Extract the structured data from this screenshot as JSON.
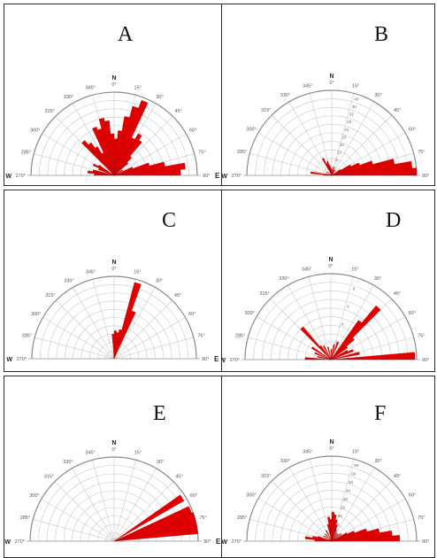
{
  "chart_data": [
    {
      "type": "rose",
      "panel": "A",
      "angle_range": [
        0,
        90,
        270,
        360
      ],
      "angle_ticks": [
        "0°",
        "15°",
        "30°",
        "45°",
        "60°",
        "75°",
        "90°",
        "285°",
        "300°",
        "315°",
        "330°",
        "345°",
        "270°"
      ],
      "cardinals": {
        "north": "N",
        "east": "E",
        "west": "W"
      },
      "rlim": [
        0,
        1
      ],
      "sectors": [
        {
          "angle": 315,
          "value": 0.55
        },
        {
          "angle": 320,
          "value": 0.48
        },
        {
          "angle": 325,
          "value": 0.4
        },
        {
          "angle": 330,
          "value": 0.3
        },
        {
          "angle": 335,
          "value": 0.62
        },
        {
          "angle": 340,
          "value": 0.58
        },
        {
          "angle": 345,
          "value": 0.7
        },
        {
          "angle": 350,
          "value": 0.66
        },
        {
          "angle": 355,
          "value": 0.5
        },
        {
          "angle": 0,
          "value": 0.44
        },
        {
          "angle": 5,
          "value": 0.54
        },
        {
          "angle": 10,
          "value": 0.72
        },
        {
          "angle": 15,
          "value": 0.86
        },
        {
          "angle": 20,
          "value": 0.96
        },
        {
          "angle": 25,
          "value": 0.5
        },
        {
          "angle": 30,
          "value": 0.58
        },
        {
          "angle": 35,
          "value": 0.52
        },
        {
          "angle": 40,
          "value": 0.3
        },
        {
          "angle": 45,
          "value": 0.22
        },
        {
          "angle": 55,
          "value": 0.12
        },
        {
          "angle": 65,
          "value": 0.24
        },
        {
          "angle": 70,
          "value": 0.44
        },
        {
          "angle": 75,
          "value": 0.62
        },
        {
          "angle": 80,
          "value": 0.86
        },
        {
          "angle": 85,
          "value": 0.8
        },
        {
          "angle": 290,
          "value": 0.2
        },
        {
          "angle": 295,
          "value": 0.28
        },
        {
          "angle": 300,
          "value": 0.22
        },
        {
          "angle": 280,
          "value": 0.26
        },
        {
          "angle": 275,
          "value": 0.32
        },
        {
          "angle": 270,
          "value": 0.24
        }
      ]
    },
    {
      "type": "rose",
      "panel": "B",
      "angle_range": [
        0,
        90,
        270,
        360
      ],
      "angle_ticks": [
        "0°",
        "15°",
        "30°",
        "45°",
        "60°",
        "75°",
        "90°",
        "285°",
        "300°",
        "315°",
        "330°",
        "345°",
        "270°"
      ],
      "cardinals": {
        "north": "N",
        "east": "E",
        "west": "W"
      },
      "rlim": [
        0,
        40
      ],
      "radial_ticks": [
        "4",
        "8",
        "12",
        "16",
        "20",
        "24",
        "28",
        "32",
        "36",
        "40"
      ],
      "sectors": [
        {
          "angle": 330,
          "value": 9
        },
        {
          "angle": 335,
          "value": 6
        },
        {
          "angle": 340,
          "value": 7
        },
        {
          "angle": 345,
          "value": 5
        },
        {
          "angle": 350,
          "value": 4
        },
        {
          "angle": 355,
          "value": 3
        },
        {
          "angle": 0,
          "value": 3
        },
        {
          "angle": 10,
          "value": 4
        },
        {
          "angle": 20,
          "value": 3
        },
        {
          "angle": 30,
          "value": 3
        },
        {
          "angle": 55,
          "value": 5
        },
        {
          "angle": 60,
          "value": 10
        },
        {
          "angle": 65,
          "value": 14
        },
        {
          "angle": 70,
          "value": 20
        },
        {
          "angle": 75,
          "value": 30
        },
        {
          "angle": 80,
          "value": 38
        },
        {
          "angle": 85,
          "value": 40
        },
        {
          "angle": 300,
          "value": 3
        },
        {
          "angle": 280,
          "value": 3
        },
        {
          "angle": 275,
          "value": 10
        },
        {
          "angle": 270,
          "value": 4
        }
      ]
    },
    {
      "type": "rose",
      "panel": "C",
      "angle_range": [
        0,
        90,
        270,
        360
      ],
      "angle_ticks": [
        "0°",
        "15°",
        "30°",
        "45°",
        "60°",
        "75°",
        "90°",
        "285°",
        "300°",
        "315°",
        "330°",
        "345°",
        "270°"
      ],
      "cardinals": {
        "north": "N",
        "east": "E",
        "west": "W"
      },
      "rlim": [
        0,
        1
      ],
      "sectors": [
        {
          "angle": 15,
          "value": 0.96
        },
        {
          "angle": 20,
          "value": 0.62
        },
        {
          "angle": 0,
          "value": 0.34
        },
        {
          "angle": 355,
          "value": 0.3
        },
        {
          "angle": 5,
          "value": 0.32
        },
        {
          "angle": 10,
          "value": 0.36
        }
      ]
    },
    {
      "type": "rose",
      "panel": "D",
      "angle_range": [
        0,
        90,
        270,
        360
      ],
      "angle_ticks": [
        "0°",
        "15°",
        "30°",
        "45°",
        "60°",
        "75°",
        "90°",
        "285°",
        "300°",
        "315°",
        "330°",
        "345°",
        "270°"
      ],
      "cardinals": {
        "north": "N",
        "east": "E",
        "west": "W"
      },
      "rlim": [
        0,
        10
      ],
      "radial_ticks": [
        "2",
        "4",
        "6",
        "8"
      ],
      "sectors": [
        {
          "angle": 40,
          "value": 8.2
        },
        {
          "angle": 35,
          "value": 5.6
        },
        {
          "angle": 45,
          "value": 3.6
        },
        {
          "angle": 50,
          "value": 2.4
        },
        {
          "angle": 60,
          "value": 2.2
        },
        {
          "angle": 65,
          "value": 2.8
        },
        {
          "angle": 75,
          "value": 3.4
        },
        {
          "angle": 85,
          "value": 9.8
        },
        {
          "angle": 315,
          "value": 5.0
        },
        {
          "angle": 320,
          "value": 2.0
        },
        {
          "angle": 330,
          "value": 1.8
        },
        {
          "angle": 345,
          "value": 1.5
        },
        {
          "angle": 0,
          "value": 1.2
        },
        {
          "angle": 10,
          "value": 1.8
        },
        {
          "angle": 20,
          "value": 2.2
        },
        {
          "angle": 300,
          "value": 2.6
        },
        {
          "angle": 290,
          "value": 2.0
        },
        {
          "angle": 280,
          "value": 1.6
        },
        {
          "angle": 270,
          "value": 3.0
        }
      ]
    },
    {
      "type": "rose",
      "panel": "E",
      "angle_range": [
        0,
        90,
        270,
        360
      ],
      "angle_ticks": [
        "0°",
        "15°",
        "30°",
        "45°",
        "60°",
        "75°",
        "90°",
        "285°",
        "300°",
        "315°",
        "330°",
        "345°",
        "270°"
      ],
      "cardinals": {
        "north": "N",
        "east": "E",
        "west": "W"
      },
      "rlim": [
        0,
        1
      ],
      "sectors": [
        {
          "angle": 55,
          "value": 0.96
        },
        {
          "angle": 65,
          "value": 0.98
        },
        {
          "angle": 70,
          "value": 1.0
        },
        {
          "angle": 75,
          "value": 1.0
        },
        {
          "angle": 80,
          "value": 1.0
        }
      ]
    },
    {
      "type": "rose",
      "panel": "F",
      "angle_range": [
        0,
        90,
        270,
        360
      ],
      "angle_ticks": [
        "0°",
        "15°",
        "30°",
        "45°",
        "60°",
        "75°",
        "90°",
        "285°",
        "300°",
        "315°",
        "330°",
        "345°",
        "270°"
      ],
      "cardinals": {
        "north": "N",
        "east": "E",
        "west": "W"
      },
      "rlim": [
        0,
        70
      ],
      "radial_ticks": [
        "4",
        "12",
        "20",
        "28",
        "36",
        "44",
        "52",
        "60",
        "68"
      ],
      "sectors": [
        {
          "angle": 345,
          "value": 14
        },
        {
          "angle": 350,
          "value": 20
        },
        {
          "angle": 355,
          "value": 18
        },
        {
          "angle": 0,
          "value": 24
        },
        {
          "angle": 5,
          "value": 22
        },
        {
          "angle": 10,
          "value": 18
        },
        {
          "angle": 15,
          "value": 14
        },
        {
          "angle": 20,
          "value": 10
        },
        {
          "angle": 30,
          "value": 8
        },
        {
          "angle": 40,
          "value": 8
        },
        {
          "angle": 50,
          "value": 10
        },
        {
          "angle": 60,
          "value": 14
        },
        {
          "angle": 65,
          "value": 20
        },
        {
          "angle": 70,
          "value": 30
        },
        {
          "angle": 75,
          "value": 40
        },
        {
          "angle": 80,
          "value": 50
        },
        {
          "angle": 85,
          "value": 56
        },
        {
          "angle": 330,
          "value": 10
        },
        {
          "angle": 315,
          "value": 8
        },
        {
          "angle": 300,
          "value": 8
        },
        {
          "angle": 285,
          "value": 12
        },
        {
          "angle": 280,
          "value": 16
        },
        {
          "angle": 275,
          "value": 22
        },
        {
          "angle": 270,
          "value": 14
        }
      ]
    }
  ],
  "colors": {
    "petal": "#e00000",
    "grid": "#c8c8c8",
    "outer": "#8a8a8a"
  }
}
